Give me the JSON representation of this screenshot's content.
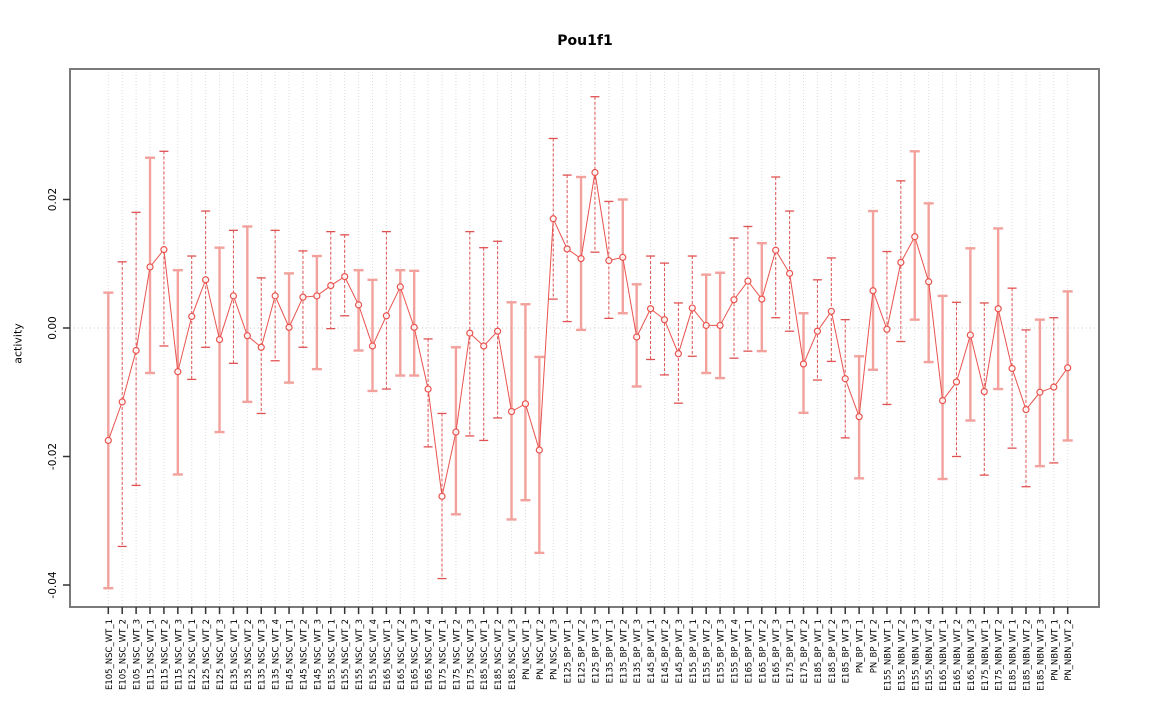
{
  "title": "Pou1f1",
  "y_axis": {
    "label": "activity",
    "tick_labels": [
      "-0.04",
      "-0.02",
      "0.00",
      "0.02"
    ],
    "tick_values": [
      -0.04,
      -0.02,
      0.0,
      0.02
    ]
  },
  "colors": {
    "point_red": "#e8534e",
    "bar_wide_salmon": "#f2a19c",
    "bar_thin_red": "#e05252",
    "grid": "#dcdcdc",
    "border": "#7a7a7a",
    "tick": "#333333",
    "text": "#000000"
  },
  "chart_data": {
    "type": "line",
    "title": "Pou1f1",
    "xlabel": "",
    "ylabel": "activity",
    "ylim": [
      -0.042,
      0.038
    ],
    "grid": "vertical-dotted-per-category-plus-zero-line",
    "legend": "none",
    "marker": "open-circle",
    "error_bars": true,
    "categories": [
      "E105_NSC_WT_1",
      "E105_NSC_WT_2",
      "E105_NSC_WT_3",
      "E115_NSC_WT_1",
      "E115_NSC_WT_2",
      "E115_NSC_WT_3",
      "E125_NSC_WT_1",
      "E125_NSC_WT_2",
      "E125_NSC_WT_3",
      "E135_NSC_WT_1",
      "E135_NSC_WT_2",
      "E135_NSC_WT_3",
      "E135_NSC_WT_4",
      "E145_NSC_WT_1",
      "E145_NSC_WT_2",
      "E145_NSC_WT_3",
      "E155_NSC_WT_1",
      "E155_NSC_WT_2",
      "E155_NSC_WT_3",
      "E155_NSC_WT_4",
      "E165_NSC_WT_1",
      "E165_NSC_WT_2",
      "E165_NSC_WT_3",
      "E165_NSC_WT_4",
      "E175_NSC_WT_1",
      "E175_NSC_WT_2",
      "E175_NSC_WT_3",
      "E185_NSC_WT_1",
      "E185_NSC_WT_2",
      "E185_NSC_WT_3",
      "PN_NSC_WT_1",
      "PN_NSC_WT_2",
      "PN_NSC_WT_3",
      "E125_BP_WT_1",
      "E125_BP_WT_2",
      "E125_BP_WT_3",
      "E135_BP_WT_1",
      "E135_BP_WT_2",
      "E135_BP_WT_3",
      "E145_BP_WT_1",
      "E145_BP_WT_2",
      "E145_BP_WT_3",
      "E155_BP_WT_1",
      "E155_BP_WT_2",
      "E155_BP_WT_3",
      "E155_BP_WT_4",
      "E165_BP_WT_1",
      "E165_BP_WT_2",
      "E165_BP_WT_3",
      "E175_BP_WT_1",
      "E175_BP_WT_2",
      "E185_BP_WT_1",
      "E185_BP_WT_2",
      "E185_BP_WT_3",
      "PN_BP_WT_1",
      "PN_BP_WT_2",
      "E155_NBN_WT_1",
      "E155_NBN_WT_2",
      "E155_NBN_WT_3",
      "E155_NBN_WT_4",
      "E165_NBN_WT_1",
      "E165_NBN_WT_2",
      "E165_NBN_WT_3",
      "E175_NBN_WT_1",
      "E175_NBN_WT_2",
      "E185_NBN_WT_1",
      "E185_NBN_WT_2",
      "E185_NBN_WT_3",
      "PN_NBN_WT_1",
      "PN_NBN_WT_2"
    ],
    "series": [
      {
        "name": "activity",
        "values": [
          -0.0175,
          -0.0115,
          -0.0035,
          0.0095,
          0.0122,
          -0.0068,
          0.0018,
          0.0075,
          -0.0018,
          0.005,
          -0.0012,
          -0.003,
          0.005,
          0.0001,
          0.0048,
          0.005,
          0.0066,
          0.008,
          0.0036,
          -0.0028,
          0.0019,
          0.0064,
          0.0001,
          -0.0095,
          -0.0262,
          -0.0162,
          -0.0008,
          -0.0028,
          -0.0005,
          -0.013,
          -0.0118,
          -0.019,
          0.017,
          0.0123,
          0.0108,
          0.0242,
          0.0105,
          0.011,
          -0.0014,
          0.003,
          0.0013,
          -0.004,
          0.0031,
          0.0004,
          0.0004,
          0.0044,
          0.0073,
          0.0045,
          0.0121,
          0.0085,
          -0.0056,
          -0.0005,
          0.0026,
          -0.0079,
          -0.0138,
          0.0058,
          -0.0002,
          0.0102,
          0.0142,
          0.0072,
          -0.0113,
          -0.0084,
          -0.0011,
          -0.0099,
          0.003,
          -0.0063,
          -0.0127,
          -0.01,
          -0.0092,
          -0.0062
        ],
        "err_high": [
          0.0055,
          0.0103,
          0.018,
          0.0265,
          0.0275,
          0.009,
          0.0112,
          0.0182,
          0.0125,
          0.0152,
          0.0158,
          0.0078,
          0.0152,
          0.0085,
          0.012,
          0.0112,
          0.015,
          0.0145,
          0.009,
          0.0075,
          0.015,
          0.009,
          0.0089,
          -0.0017,
          -0.0133,
          -0.003,
          0.015,
          0.0125,
          0.0135,
          0.004,
          0.0037,
          -0.0045,
          0.0295,
          0.0238,
          0.0235,
          0.036,
          0.0197,
          0.02,
          0.0068,
          0.0112,
          0.0101,
          0.0039,
          0.0112,
          0.0083,
          0.0086,
          0.014,
          0.0158,
          0.0132,
          0.0235,
          0.0182,
          0.0023,
          0.0075,
          0.0109,
          0.0013,
          -0.0044,
          0.0182,
          0.0119,
          0.0229,
          0.0275,
          0.0194,
          0.005,
          0.004,
          0.0124,
          0.0039,
          0.0155,
          0.0062,
          -0.0003,
          0.0013,
          0.0016,
          0.0057
        ],
        "err_low": [
          -0.0405,
          -0.034,
          -0.0245,
          -0.007,
          -0.0028,
          -0.0228,
          -0.008,
          -0.003,
          -0.0162,
          -0.0055,
          -0.0115,
          -0.0133,
          -0.0051,
          -0.0085,
          -0.003,
          -0.0064,
          -0.0001,
          0.0019,
          -0.0035,
          -0.0098,
          -0.0095,
          -0.0074,
          -0.0074,
          -0.0185,
          -0.039,
          -0.029,
          -0.0168,
          -0.0175,
          -0.014,
          -0.0298,
          -0.0268,
          -0.035,
          0.0045,
          0.001,
          -0.0003,
          0.0118,
          0.0015,
          0.0023,
          -0.0091,
          -0.0049,
          -0.0073,
          -0.0117,
          -0.0044,
          -0.007,
          -0.0078,
          -0.0047,
          -0.0036,
          -0.0036,
          0.0016,
          -0.0005,
          -0.0132,
          -0.0081,
          -0.0052,
          -0.0171,
          -0.0234,
          -0.0065,
          -0.0119,
          -0.0021,
          0.0013,
          -0.0053,
          -0.0235,
          -0.02,
          -0.0144,
          -0.0229,
          -0.0095,
          -0.0187,
          -0.0247,
          -0.0215,
          -0.021,
          -0.0175
        ],
        "bar_wide": [
          true,
          false,
          false,
          true,
          false,
          true,
          false,
          false,
          true,
          false,
          true,
          false,
          false,
          true,
          false,
          true,
          false,
          false,
          true,
          true,
          false,
          true,
          true,
          false,
          false,
          true,
          false,
          false,
          false,
          true,
          true,
          true,
          false,
          false,
          true,
          false,
          false,
          true,
          true,
          false,
          false,
          false,
          false,
          true,
          true,
          false,
          false,
          true,
          false,
          false,
          true,
          false,
          false,
          false,
          true,
          true,
          false,
          false,
          true,
          true,
          true,
          false,
          true,
          false,
          true,
          false,
          false,
          true,
          false,
          true
        ]
      }
    ]
  }
}
